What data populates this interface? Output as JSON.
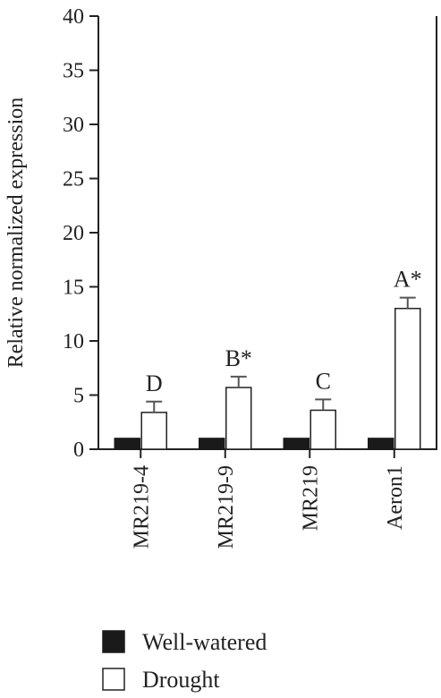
{
  "chart_data": {
    "type": "bar",
    "ylabel": "Relative normalized expression",
    "ylim": [
      0,
      40
    ],
    "yticks": [
      0,
      5,
      10,
      15,
      20,
      25,
      30,
      35,
      40
    ],
    "categories": [
      "MR219-4",
      "MR219-9",
      "MR219",
      "Aeron1"
    ],
    "series": [
      {
        "name": "Well-watered",
        "values": [
          1,
          1,
          1,
          1
        ],
        "color": "#1a1a1a"
      },
      {
        "name": "Drought",
        "values": [
          3.4,
          5.7,
          3.6,
          13.0
        ],
        "errors": [
          1.0,
          1.0,
          1.0,
          1.0
        ],
        "color": "#ffffff"
      }
    ],
    "annotations": [
      "D",
      "B*",
      "C",
      "A*"
    ],
    "legend_position": "bottom-left",
    "grid": false
  }
}
